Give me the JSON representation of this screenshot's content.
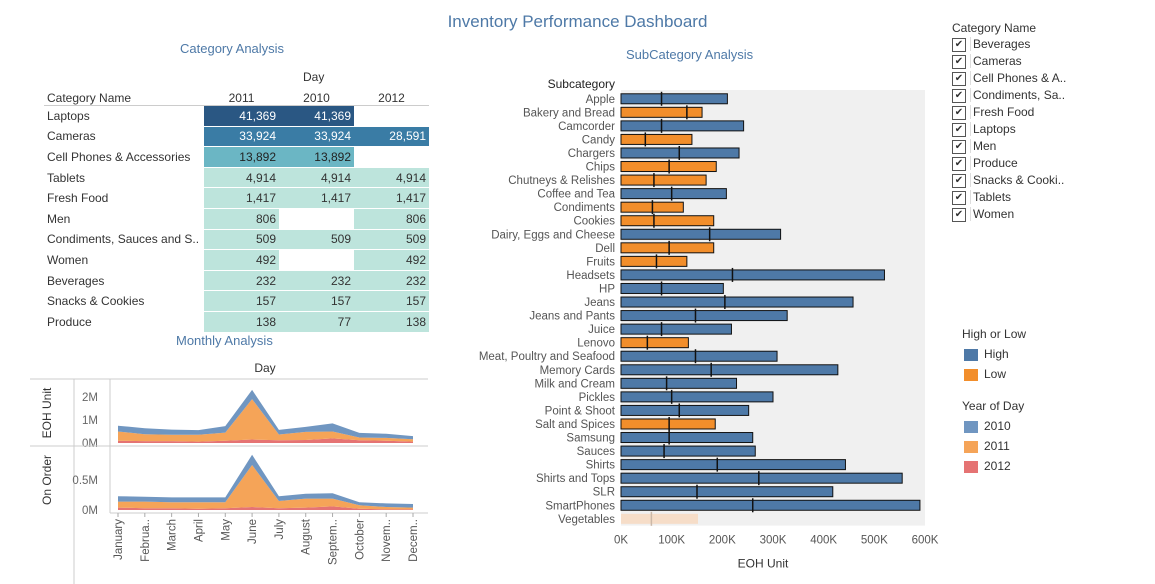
{
  "dashboard_title": "Inventory Performance Dashboard",
  "category_analysis": {
    "title": "Category Analysis",
    "column_header": "Day",
    "row_header": "Category Name",
    "years": [
      "2011",
      "2010",
      "2012"
    ],
    "rows": [
      {
        "name": "Laptops",
        "values": [
          "41,369",
          "41,369",
          ""
        ]
      },
      {
        "name": "Cameras",
        "values": [
          "33,924",
          "33,924",
          "28,591"
        ]
      },
      {
        "name": "Cell Phones & Accessories",
        "values": [
          "13,892",
          "13,892",
          ""
        ]
      },
      {
        "name": "Tablets",
        "values": [
          "4,914",
          "4,914",
          "4,914"
        ]
      },
      {
        "name": "Fresh Food",
        "values": [
          "1,417",
          "1,417",
          "1,417"
        ]
      },
      {
        "name": "Men",
        "values": [
          "806",
          "",
          "806"
        ]
      },
      {
        "name": "Condiments, Sauces and S..",
        "values": [
          "509",
          "509",
          "509"
        ]
      },
      {
        "name": "Women",
        "values": [
          "492",
          "",
          "492"
        ]
      },
      {
        "name": "Beverages",
        "values": [
          "232",
          "232",
          "232"
        ]
      },
      {
        "name": "Snacks & Cookies",
        "values": [
          "157",
          "157",
          "157"
        ]
      },
      {
        "name": "Produce",
        "values": [
          "138",
          "77",
          "138"
        ]
      }
    ],
    "colors": {
      "dark": "#2a5783",
      "mid": "#3a7ca5",
      "light": "#6bb6c4",
      "pale": "#bde4dc"
    }
  },
  "monthly_analysis": {
    "title": "Monthly Analysis",
    "column_header": "Day"
  },
  "subcategory_analysis": {
    "title": "SubCategory Analysis"
  },
  "category_filter": {
    "title": "Category Name",
    "items": [
      "Beverages",
      "Cameras",
      "Cell Phones & A..",
      "Condiments, Sa..",
      "Fresh Food",
      "Laptops",
      "Men",
      "Produce",
      "Snacks & Cooki..",
      "Tablets",
      "Women"
    ],
    "check_glyph": "✔"
  },
  "high_low_legend": {
    "title": "High or Low",
    "items": [
      {
        "label": "High",
        "color": "#4e79a7"
      },
      {
        "label": "Low",
        "color": "#f28e2b"
      }
    ]
  },
  "year_legend": {
    "title": "Year of Day",
    "items": [
      {
        "label": "2010",
        "color": "#7096c1"
      },
      {
        "label": "2011",
        "color": "#f5a458"
      },
      {
        "label": "2012",
        "color": "#e57373"
      }
    ]
  },
  "chart_data": [
    {
      "type": "bar",
      "title": "SubCategory Analysis",
      "ylabel": "Subcategory",
      "xlabel": "EOH Unit",
      "xlim": [
        0,
        600000
      ],
      "xticks": [
        "0K",
        "100K",
        "200K",
        "300K",
        "400K",
        "500K",
        "600K"
      ],
      "categories": [
        "Apple",
        "Bakery and Bread",
        "Camcorder",
        "Candy",
        "Chargers",
        "Chips",
        "Chutneys & Relishes",
        "Coffee and Tea",
        "Condiments",
        "Cookies",
        "Dairy, Eggs and Cheese",
        "Dell",
        "Fruits",
        "Headsets",
        "HP",
        "Jeans",
        "Jeans and Pants",
        "Juice",
        "Lenovo",
        "Meat, Poultry and Seafood",
        "Memory Cards",
        "Milk and Cream",
        "Pickles",
        "Point & Shoot",
        "Salt and Spices",
        "Samsung",
        "Sauces",
        "Shirts",
        "Shirts and Tops",
        "SLR",
        "SmartPhones",
        "Vegetables"
      ],
      "values": [
        210000,
        160000,
        242000,
        140000,
        233000,
        188000,
        168000,
        208000,
        123000,
        183000,
        315000,
        183000,
        130000,
        520000,
        202000,
        458000,
        328000,
        218000,
        133000,
        308000,
        428000,
        228000,
        300000,
        252000,
        186000,
        260000,
        265000,
        443000,
        555000,
        418000,
        590000,
        152000
      ],
      "reference": [
        80000,
        130000,
        80000,
        48000,
        115000,
        95000,
        65000,
        100000,
        62000,
        65000,
        175000,
        95000,
        70000,
        220000,
        80000,
        205000,
        147000,
        80000,
        52000,
        147000,
        178000,
        90000,
        100000,
        115000,
        95000,
        95000,
        85000,
        190000,
        272000,
        150000,
        260000,
        60000
      ],
      "high_low": [
        "High",
        "Low",
        "High",
        "Low",
        "High",
        "Low",
        "Low",
        "High",
        "Low",
        "Low",
        "High",
        "Low",
        "Low",
        "High",
        "High",
        "High",
        "High",
        "High",
        "Low",
        "High",
        "High",
        "High",
        "High",
        "High",
        "Low",
        "High",
        "High",
        "High",
        "High",
        "High",
        "High",
        "Low"
      ]
    },
    {
      "type": "area",
      "title": "Monthly Analysis",
      "x": [
        "January",
        "Februa..",
        "March",
        "April",
        "May",
        "June",
        "July",
        "August",
        "Septem..",
        "October",
        "Novem..",
        "Decem.."
      ],
      "panels": [
        {
          "ylabel": "EOH Unit",
          "ylim": [
            0,
            2600000
          ],
          "yticks": [
            {
              "label": "0M",
              "value": 0
            },
            {
              "label": "1M",
              "value": 1000000
            },
            {
              "label": "2M",
              "value": 2000000
            }
          ],
          "series": [
            {
              "name": "2012",
              "values": [
                100000,
                80000,
                80000,
                60000,
                100000,
                150000,
                120000,
                130000,
                200000,
                120000,
                100000,
                60000
              ]
            },
            {
              "name": "2011",
              "values": [
                400000,
                300000,
                280000,
                300000,
                350000,
                1750000,
                250000,
                350000,
                300000,
                120000,
                120000,
                100000
              ]
            },
            {
              "name": "2010",
              "values": [
                250000,
                260000,
                220000,
                200000,
                280000,
                400000,
                200000,
                220000,
                350000,
                200000,
                180000,
                140000
              ]
            }
          ]
        },
        {
          "ylabel": "On Order",
          "ylim": [
            0,
            1000000
          ],
          "yticks": [
            {
              "label": "0M",
              "value": 0
            },
            {
              "label": "0.5M",
              "value": 500000
            }
          ],
          "series": [
            {
              "name": "2012",
              "values": [
                40000,
                30000,
                30000,
                20000,
                30000,
                50000,
                30000,
                40000,
                60000,
                20000,
                10000,
                10000
              ]
            },
            {
              "name": "2011",
              "values": [
                100000,
                110000,
                100000,
                110000,
                100000,
                700000,
                120000,
                150000,
                130000,
                60000,
                40000,
                30000
              ]
            },
            {
              "name": "2010",
              "values": [
                90000,
                80000,
                80000,
                80000,
                80000,
                170000,
                80000,
                80000,
                90000,
                50000,
                60000,
                60000
              ]
            }
          ]
        }
      ]
    }
  ]
}
